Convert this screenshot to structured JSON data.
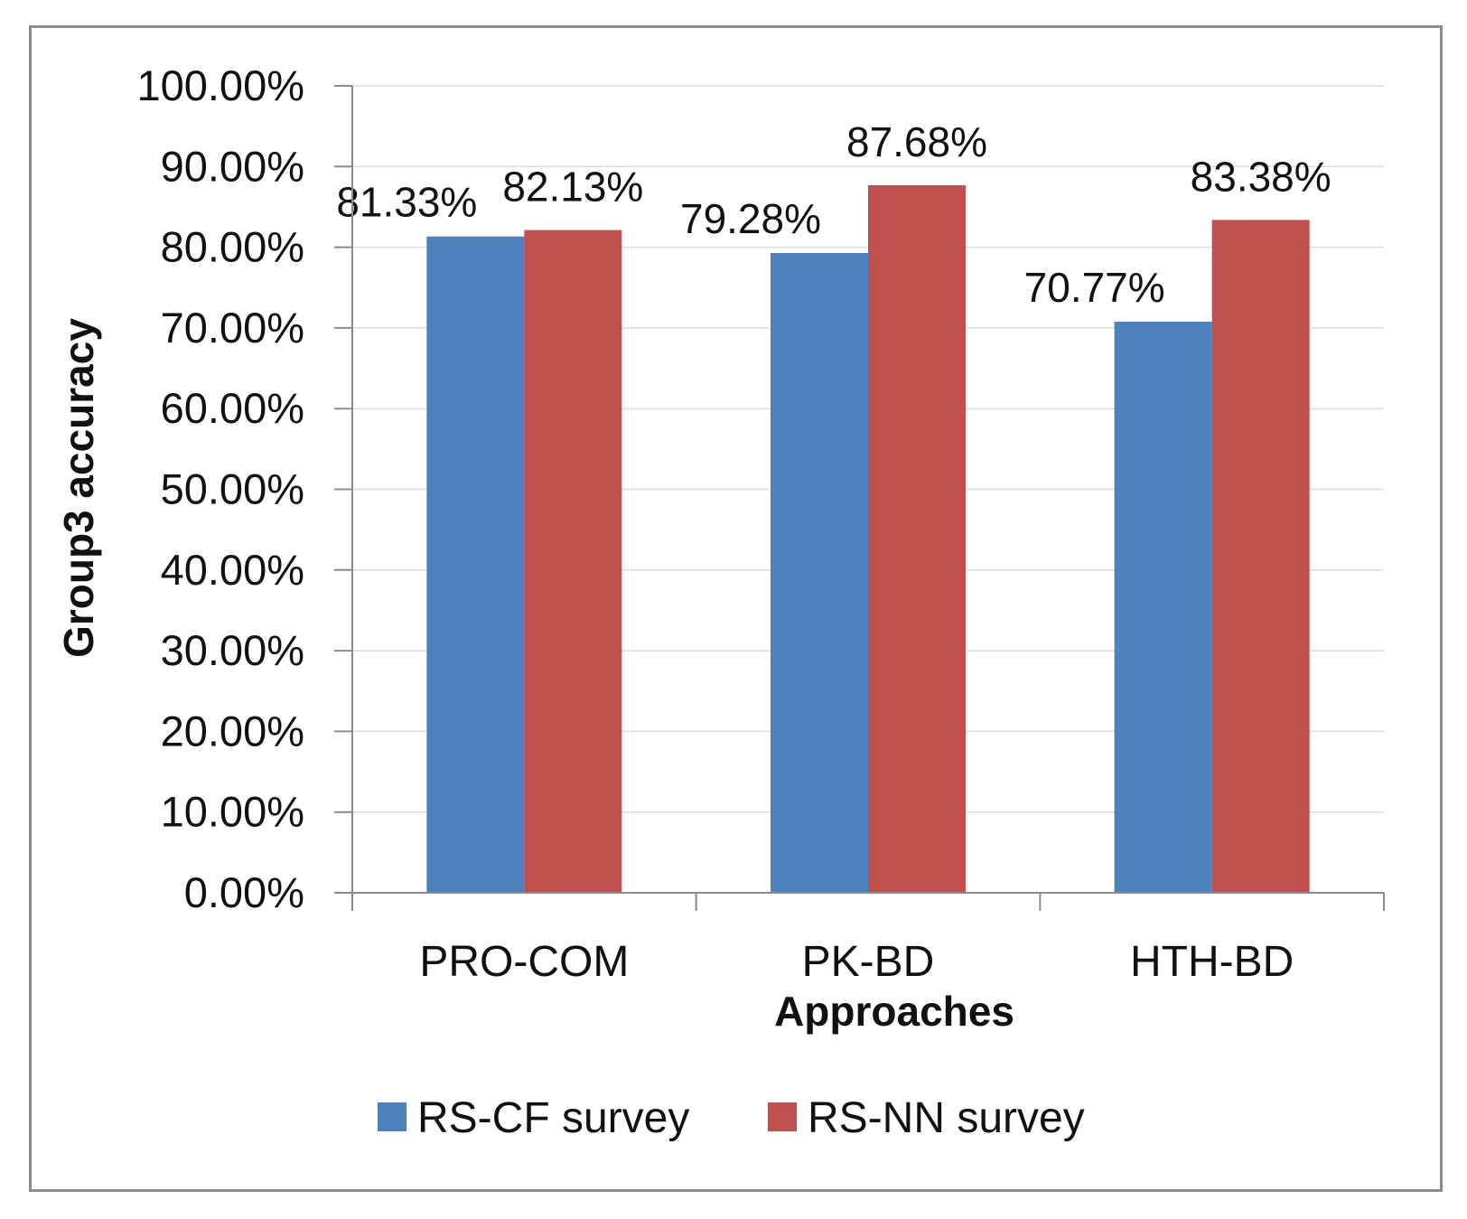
{
  "chart_data": {
    "type": "bar",
    "title": "",
    "xlabel": "Approaches",
    "ylabel": "Group3 accuracy",
    "categories": [
      "PRO-COM",
      "PK-BD",
      "HTH-BD"
    ],
    "series": [
      {
        "name": "RS-CF survey",
        "color": "#4f81bd",
        "values": [
          81.33,
          79.28,
          70.77
        ],
        "labels": [
          "81.33%",
          "79.28%",
          "70.77%"
        ]
      },
      {
        "name": "RS-NN survey",
        "color": "#c0504d",
        "values": [
          82.13,
          87.68,
          83.38
        ],
        "labels": [
          "82.13%",
          "87.68%",
          "83.38%"
        ]
      }
    ],
    "ylim": [
      0,
      100
    ],
    "yticks": [
      0,
      10,
      20,
      30,
      40,
      50,
      60,
      70,
      80,
      90,
      100
    ],
    "ytick_labels": [
      "0.00%",
      "10.00%",
      "20.00%",
      "30.00%",
      "40.00%",
      "50.00%",
      "60.00%",
      "70.00%",
      "80.00%",
      "90.00%",
      "100.00%"
    ],
    "grid": true,
    "legend_position": "bottom"
  }
}
